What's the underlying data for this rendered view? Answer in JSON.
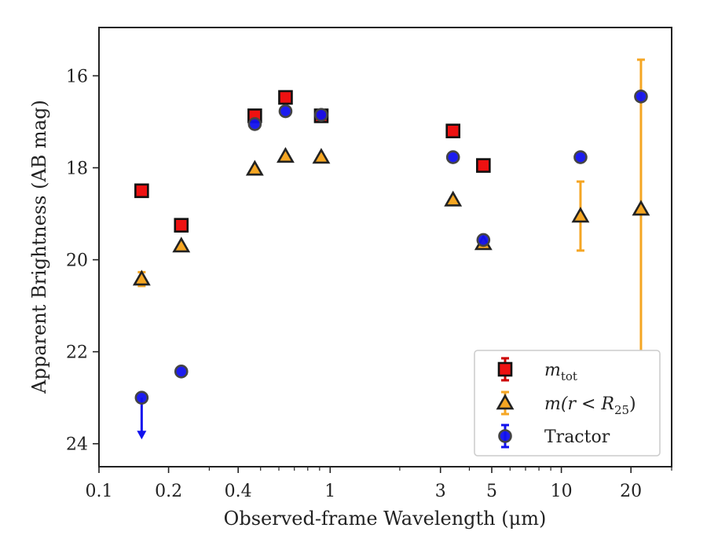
{
  "chart_data": {
    "type": "scatter",
    "xscale": "log",
    "yinverted": true,
    "xlim": [
      0.1,
      30
    ],
    "ylim": [
      14.95,
      24.5
    ],
    "xlabel": "Observed-frame Wavelength (μm)",
    "ylabel": "Apparent Brightness (AB mag)",
    "x_ticks": [
      {
        "v": 0.1,
        "label": "0.1"
      },
      {
        "v": 0.2,
        "label": "0.2"
      },
      {
        "v": 0.4,
        "label": "0.4"
      },
      {
        "v": 1,
        "label": "1"
      },
      {
        "v": 3,
        "label": "3"
      },
      {
        "v": 5,
        "label": "5"
      },
      {
        "v": 10,
        "label": "10"
      },
      {
        "v": 20,
        "label": "20"
      }
    ],
    "x_minor_ticks": [
      0.3,
      0.5,
      0.6,
      0.7,
      0.8,
      0.9,
      2,
      4,
      6,
      7,
      8,
      9,
      30
    ],
    "y_ticks": [
      {
        "v": 16,
        "label": "16"
      },
      {
        "v": 18,
        "label": "18"
      },
      {
        "v": 20,
        "label": "20"
      },
      {
        "v": 22,
        "label": "22"
      },
      {
        "v": 24,
        "label": "24"
      }
    ],
    "legend_position": "lower-right",
    "series": [
      {
        "key": "mtot",
        "name": "m",
        "sub": "tot",
        "marker": "square",
        "color": "#ee1111",
        "edge": "#111111",
        "errcolor": "#cc0000",
        "points": [
          {
            "x": 0.153,
            "y": 18.5
          },
          {
            "x": 0.227,
            "y": 19.25
          },
          {
            "x": 0.472,
            "y": 16.87
          },
          {
            "x": 0.641,
            "y": 16.47
          },
          {
            "x": 0.915,
            "y": 16.87
          },
          {
            "x": 3.4,
            "y": 17.2
          },
          {
            "x": 4.6,
            "y": 17.95
          }
        ]
      },
      {
        "key": "mr25",
        "name": "m(r < R",
        "sub": "25",
        "suffix": ")",
        "marker": "triangle",
        "color": "#f5a623",
        "edge": "#222222",
        "errcolor": "#f5a623",
        "points": [
          {
            "x": 0.153,
            "y": 20.42,
            "err": 0.15
          },
          {
            "x": 0.227,
            "y": 19.7
          },
          {
            "x": 0.472,
            "y": 18.03
          },
          {
            "x": 0.641,
            "y": 17.75
          },
          {
            "x": 0.915,
            "y": 17.77
          },
          {
            "x": 3.4,
            "y": 18.7
          },
          {
            "x": 4.6,
            "y": 19.65
          },
          {
            "x": 12.1,
            "y": 19.05,
            "err": 0.75
          },
          {
            "x": 22.1,
            "y": 18.9,
            "errlo": 3.25,
            "errhi": 3.25
          }
        ]
      },
      {
        "key": "tractor",
        "name": "Tractor",
        "marker": "circle",
        "color": "#1111ee",
        "edge": "#444444",
        "errcolor": "#1111ee",
        "points": [
          {
            "x": 0.153,
            "y": 23.0,
            "upper_limit": true
          },
          {
            "x": 0.227,
            "y": 22.43
          },
          {
            "x": 0.472,
            "y": 17.05
          },
          {
            "x": 0.641,
            "y": 16.77
          },
          {
            "x": 0.915,
            "y": 16.85
          },
          {
            "x": 3.4,
            "y": 17.77
          },
          {
            "x": 4.6,
            "y": 19.57
          },
          {
            "x": 12.1,
            "y": 17.77
          },
          {
            "x": 22.1,
            "y": 16.45
          }
        ]
      }
    ]
  }
}
